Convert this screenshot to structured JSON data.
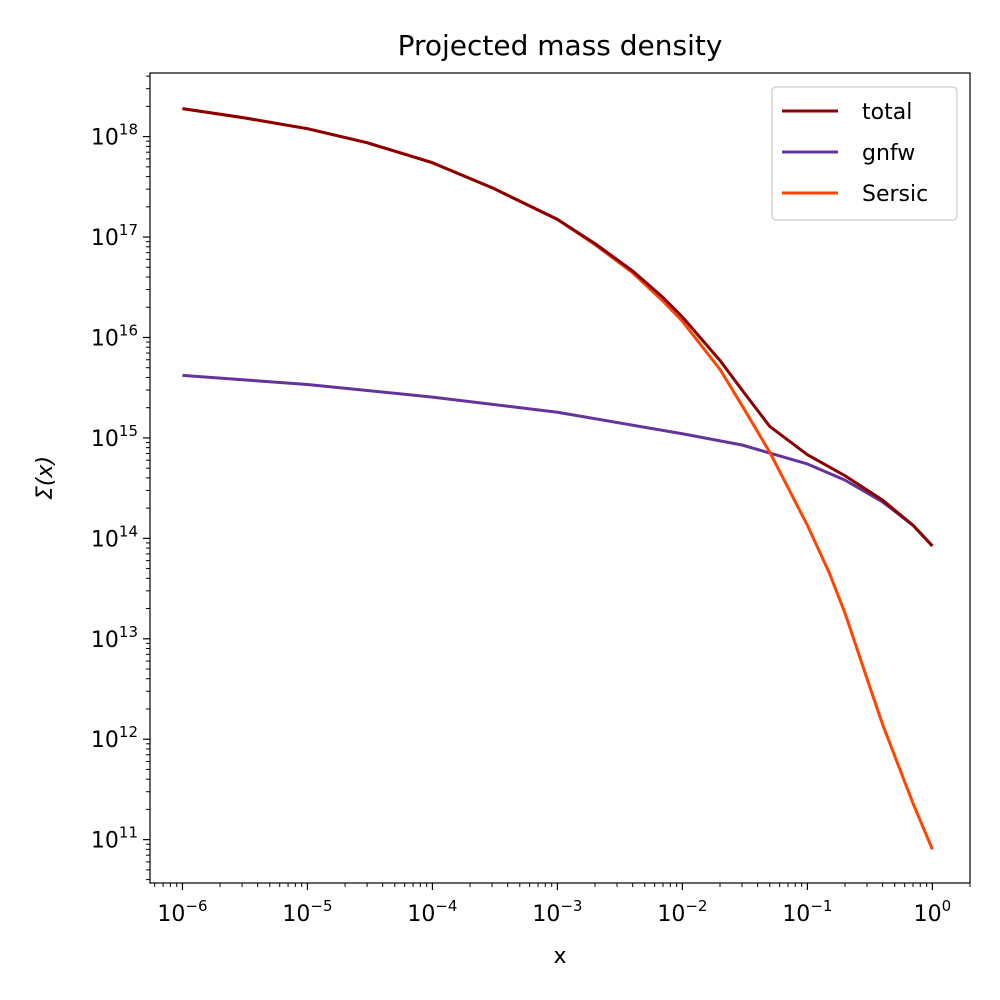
{
  "chart_data": {
    "type": "line",
    "title": "Projected mass density",
    "xlabel": "x",
    "ylabel": "Σ(x)",
    "xscale": "log",
    "yscale": "log",
    "xlim": [
      5.5e-07,
      2.0
    ],
    "ylim": [
      37000000000.0,
      4.3e+18
    ],
    "x_ticks": [
      {
        "base": "10",
        "exp": "−6",
        "value": 1e-06
      },
      {
        "base": "10",
        "exp": "−5",
        "value": 1e-05
      },
      {
        "base": "10",
        "exp": "−4",
        "value": 0.0001
      },
      {
        "base": "10",
        "exp": "−3",
        "value": 0.001
      },
      {
        "base": "10",
        "exp": "−2",
        "value": 0.01
      },
      {
        "base": "10",
        "exp": "−1",
        "value": 0.1
      },
      {
        "base": "10",
        "exp": "0",
        "value": 1
      }
    ],
    "y_ticks": [
      {
        "base": "10",
        "exp": "11",
        "value": 100000000000.0
      },
      {
        "base": "10",
        "exp": "12",
        "value": 1000000000000.0
      },
      {
        "base": "10",
        "exp": "13",
        "value": 10000000000000.0
      },
      {
        "base": "10",
        "exp": "14",
        "value": 100000000000000.0
      },
      {
        "base": "10",
        "exp": "15",
        "value": 1000000000000000.0
      },
      {
        "base": "10",
        "exp": "16",
        "value": 1e+16
      },
      {
        "base": "10",
        "exp": "17",
        "value": 1e+17
      },
      {
        "base": "10",
        "exp": "18",
        "value": 1e+18
      }
    ],
    "grid": false,
    "legend_position": "top-right",
    "series": [
      {
        "name": "total",
        "color": "#8b0000",
        "x": [
          1e-06,
          3e-06,
          1e-05,
          3e-05,
          0.0001,
          0.0003,
          0.001,
          0.002,
          0.004,
          0.007,
          0.01,
          0.02,
          0.03,
          0.05,
          0.1,
          0.2,
          0.4,
          0.7,
          1.0
        ],
        "y": [
          1.9e+18,
          1.55e+18,
          1.2e+18,
          8.7e+17,
          5.5e+17,
          3.1e+17,
          1.5e+17,
          8.6e+16,
          4.6e+16,
          2.5e+16,
          1.6e+16,
          5900000000000000.0,
          3000000000000000.0,
          1300000000000000.0,
          680000000000000.0,
          420000000000000.0,
          240000000000000.0,
          135000000000000.0,
          84000000000000.0
        ]
      },
      {
        "name": "gnfw",
        "color": "#663399",
        "x": [
          1e-06,
          1e-05,
          0.0001,
          0.001,
          0.01,
          0.03,
          0.1,
          0.2,
          0.4,
          0.7,
          1.0
        ],
        "y": [
          4200000000000000.0,
          3400000000000000.0,
          2550000000000000.0,
          1800000000000000.0,
          1100000000000000.0,
          850000000000000.0,
          550000000000000.0,
          380000000000000.0,
          230000000000000.0,
          135000000000000.0,
          84000000000000.0
        ]
      },
      {
        "name": "Sersic",
        "color": "#ff4500",
        "x": [
          1e-06,
          3e-06,
          1e-05,
          3e-05,
          0.0001,
          0.0003,
          0.001,
          0.002,
          0.004,
          0.007,
          0.01,
          0.02,
          0.03,
          0.05,
          0.1,
          0.15,
          0.2,
          0.3,
          0.4,
          0.5,
          0.7,
          1.0
        ],
        "y": [
          1.9e+18,
          1.55e+18,
          1.2e+18,
          8.7e+17,
          5.5e+17,
          3.1e+17,
          1.5e+17,
          8.4e+16,
          4.4e+16,
          2.3e+16,
          1.45e+16,
          4800000000000000.0,
          2100000000000000.0,
          720000000000000.0,
          135000000000000.0,
          45000000000000.0,
          18000000000000.0,
          4000000000000.0,
          1400000000000.0,
          680000000000.0,
          230000000000.0,
          80000000000.0
        ]
      }
    ]
  }
}
